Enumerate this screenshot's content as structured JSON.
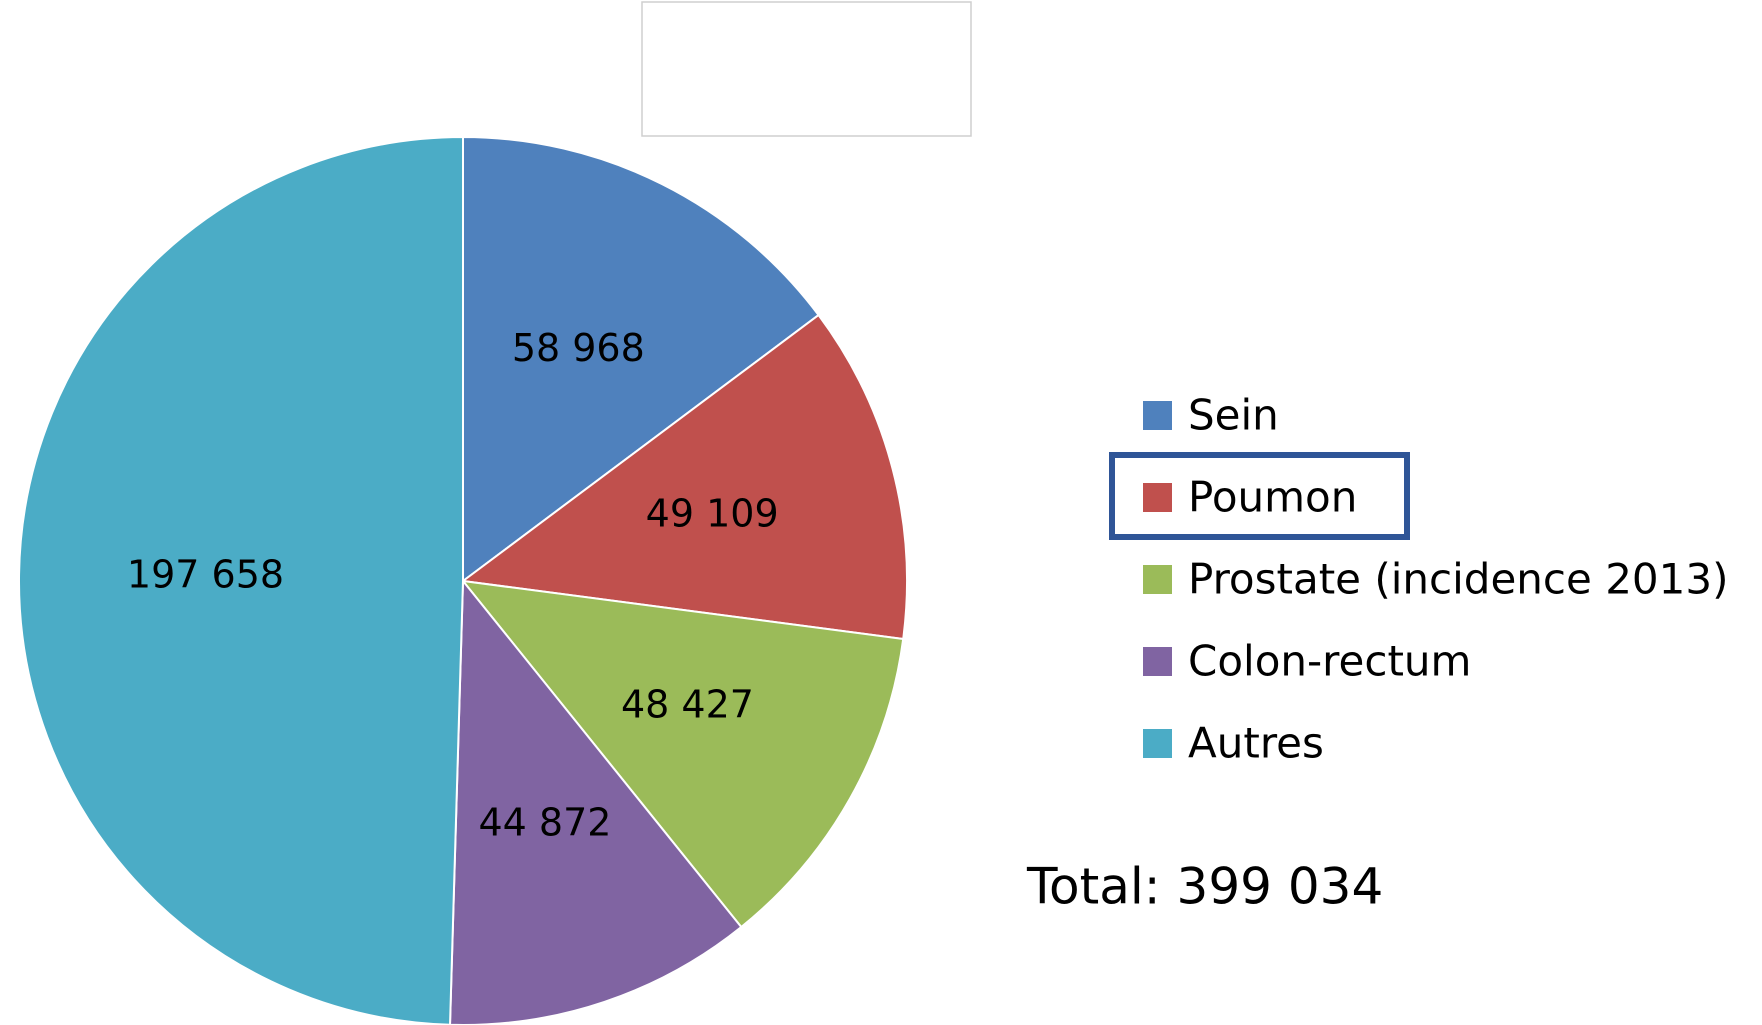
{
  "chart_data": {
    "type": "pie",
    "categories": [
      "Sein",
      "Poumon",
      "Prostate (incidence 2013)",
      "Colon-rectum",
      "Autres"
    ],
    "values": [
      58968,
      49109,
      48427,
      44872,
      197658
    ],
    "value_labels": [
      "58 968",
      "49 109",
      "48 427",
      "44 872",
      "197 658"
    ],
    "colors": [
      "#4f81bd",
      "#c0504d",
      "#9bbb59",
      "#8064a2",
      "#4bacc6"
    ],
    "annotation": "Total: 399 034",
    "legend": "right"
  }
}
